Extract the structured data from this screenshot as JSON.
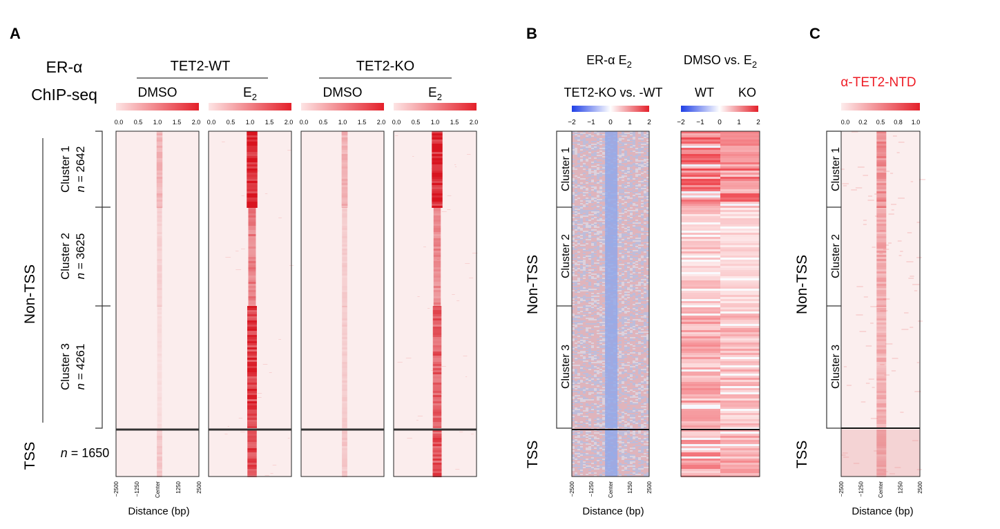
{
  "figure": {
    "panels": {
      "A": {
        "letter": "A",
        "title_line1": "ER-α",
        "title_line2": "ChIP-seq",
        "groups": [
          "TET2-WT",
          "TET2-KO"
        ],
        "conditions": [
          {
            "label": "DMSO",
            "sub": ""
          },
          {
            "label": "E",
            "sub": "2"
          },
          {
            "label": "DMSO",
            "sub": ""
          },
          {
            "label": "E",
            "sub": "2"
          }
        ],
        "colorbar_ticks": [
          "0.0",
          "0.5",
          "1.0",
          "1.5",
          "2.0"
        ],
        "region_labels": [
          "Non-TSS",
          "TSS"
        ],
        "cluster_labels": [
          {
            "name": "Cluster 1",
            "n": "2642"
          },
          {
            "name": "Cluster 2",
            "n": "3625"
          },
          {
            "name": "Cluster 3",
            "n": "4261"
          }
        ],
        "n_italic": "n",
        "n_eq": " = ",
        "tss_n": "1650",
        "xticks": [
          "−2500",
          "−1250",
          "Center",
          "1250",
          "2500"
        ],
        "xlabel": "Distance (bp)"
      },
      "B": {
        "letter": "B",
        "col1_title": "ER-α E",
        "col1_title_sub": "2",
        "col1_subtitle": "TET2-KO vs. -WT",
        "col2_title": "DMSO vs. E",
        "col2_title_sub": "2",
        "col2_sub_wt": "WT",
        "col2_sub_ko": "KO",
        "colorbar_ticks": [
          "−2",
          "−1",
          "0",
          "1",
          "2"
        ],
        "region_labels": [
          "Non-TSS",
          "TSS"
        ],
        "cluster_labels": [
          "Cluster 1",
          "Cluster 2",
          "Cluster 3"
        ],
        "xticks": [
          "−2500",
          "−1250",
          "Center",
          "1250",
          "2500"
        ],
        "xlabel": "Distance (bp)"
      },
      "C": {
        "letter": "C",
        "title": "α-TET2-NTD",
        "colorbar_ticks": [
          "0.0",
          "0.2",
          "0.5",
          "0.8",
          "1.0"
        ],
        "region_labels": [
          "Non-TSS",
          "TSS"
        ],
        "cluster_labels": [
          "Cluster 1",
          "Cluster 2",
          "Cluster 3"
        ],
        "xticks": [
          "−2500",
          "−1250",
          "Center",
          "1250",
          "2500"
        ],
        "xlabel": "Distance (bp)"
      }
    },
    "colors": {
      "red": "#e4202a",
      "blue": "#1f3fe6",
      "pale": "#fbeaea",
      "title_red": "#ee1c25"
    }
  },
  "chart_data": [
    {
      "type": "heatmap",
      "title": "ER-α ChIP-seq (panel A)",
      "xlabel": "Distance (bp)",
      "x_range": [
        -2500,
        2500
      ],
      "color_range": [
        0.0,
        2.0
      ],
      "rows_clusters": [
        {
          "name": "Cluster 1",
          "n": 2642
        },
        {
          "name": "Cluster 2",
          "n": 3625
        },
        {
          "name": "Cluster 3",
          "n": 4261
        },
        {
          "name": "TSS",
          "n": 1650
        }
      ],
      "series": [
        {
          "name": "TET2-WT DMSO",
          "center_intensity": [
            0.5,
            0.25,
            0.15,
            0.35
          ]
        },
        {
          "name": "TET2-WT E2",
          "center_intensity": [
            1.9,
            1.0,
            1.6,
            1.5
          ]
        },
        {
          "name": "TET2-KO DMSO",
          "center_intensity": [
            0.55,
            0.3,
            0.3,
            0.35
          ]
        },
        {
          "name": "TET2-KO E2",
          "center_intensity": [
            1.9,
            0.9,
            1.3,
            1.4
          ]
        }
      ]
    },
    {
      "type": "heatmap",
      "title": "ER-α E2 TET2-KO vs. -WT (panel B)",
      "xlabel": "Distance (bp)",
      "x_range": [
        -2500,
        2500
      ],
      "color_range": [
        -2,
        2
      ],
      "series": [
        {
          "name": "TET2-KO vs. -WT center",
          "values": [
            -0.8,
            -0.8,
            -0.8,
            -0.8
          ]
        },
        {
          "name": "DMSO vs. E2 WT",
          "values": [
            1.0,
            0.4,
            0.6,
            0.7
          ]
        },
        {
          "name": "DMSO vs. E2 KO",
          "values": [
            0.9,
            0.3,
            0.5,
            0.6
          ]
        }
      ],
      "categories": [
        "Cluster 1",
        "Cluster 2",
        "Cluster 3",
        "TSS"
      ]
    },
    {
      "type": "heatmap",
      "title": "α-TET2-NTD (panel C)",
      "xlabel": "Distance (bp)",
      "x_range": [
        -2500,
        2500
      ],
      "color_range": [
        0.0,
        1.0
      ],
      "categories": [
        "Cluster 1",
        "Cluster 2",
        "Cluster 3",
        "TSS"
      ],
      "series": [
        {
          "name": "α-TET2-NTD center",
          "values": [
            0.6,
            0.45,
            0.4,
            0.5
          ]
        }
      ]
    }
  ]
}
